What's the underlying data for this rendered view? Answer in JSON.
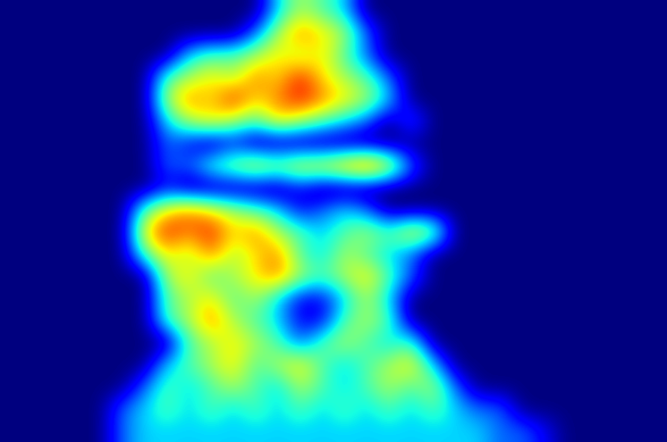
{
  "chart_data": {
    "type": "heatmap",
    "tick_labels": false,
    "value_range": [
      0,
      9
    ],
    "cells": [
      [
        0,
        0,
        0,
        0,
        0,
        0,
        0,
        0,
        0,
        0,
        0,
        0,
        3,
        5,
        4,
        3,
        0,
        0,
        0,
        0,
        0,
        0,
        0,
        0,
        0,
        0,
        0,
        0,
        0,
        0
      ],
      [
        0,
        0,
        0,
        0,
        0,
        0,
        0,
        0,
        0,
        0,
        0,
        2,
        5,
        7,
        6,
        5,
        2,
        0,
        0,
        0,
        0,
        0,
        0,
        0,
        0,
        0,
        0,
        0,
        0,
        0
      ],
      [
        0,
        0,
        0,
        0,
        0,
        0,
        0,
        0,
        3,
        4,
        4,
        5,
        6,
        5,
        6,
        4,
        2,
        0,
        0,
        0,
        0,
        0,
        0,
        0,
        0,
        0,
        0,
        0,
        0,
        0
      ],
      [
        0,
        0,
        0,
        0,
        0,
        0,
        0,
        4,
        5,
        6,
        5,
        7,
        6,
        8,
        6,
        5,
        4,
        2,
        0,
        0,
        0,
        0,
        0,
        0,
        0,
        0,
        0,
        0,
        0,
        0
      ],
      [
        0,
        0,
        0,
        0,
        0,
        0,
        0,
        5,
        7,
        6,
        8,
        6,
        7,
        8,
        7,
        6,
        5,
        3,
        0,
        0,
        0,
        0,
        0,
        0,
        0,
        0,
        0,
        0,
        0,
        0
      ],
      [
        0,
        0,
        0,
        0,
        0,
        0,
        0,
        3,
        5,
        6,
        5,
        4,
        6,
        5,
        4,
        3,
        2,
        0,
        2,
        0,
        0,
        0,
        0,
        0,
        0,
        0,
        0,
        0,
        0,
        0
      ],
      [
        0,
        0,
        0,
        0,
        0,
        0,
        0,
        2,
        1,
        0,
        1,
        0,
        0,
        0,
        0,
        0,
        0,
        0,
        0,
        0,
        0,
        0,
        0,
        0,
        0,
        0,
        0,
        0,
        0,
        0
      ],
      [
        0,
        0,
        0,
        0,
        0,
        0,
        0,
        2,
        2,
        4,
        5,
        6,
        5,
        6,
        6,
        7,
        8,
        6,
        2,
        0,
        0,
        0,
        0,
        0,
        0,
        0,
        0,
        0,
        0,
        0
      ],
      [
        0,
        0,
        0,
        0,
        0,
        0,
        0,
        1,
        0,
        0,
        0,
        0,
        0,
        1,
        0,
        0,
        0,
        0,
        0,
        0,
        0,
        0,
        0,
        0,
        0,
        0,
        0,
        0,
        0,
        0
      ],
      [
        0,
        0,
        0,
        0,
        0,
        0,
        4,
        6,
        7,
        6,
        5,
        4,
        3,
        1,
        2,
        3,
        2,
        0,
        0,
        0,
        0,
        0,
        0,
        0,
        0,
        0,
        0,
        0,
        0,
        0
      ],
      [
        0,
        0,
        0,
        0,
        0,
        0,
        6,
        8,
        7,
        8,
        6,
        7,
        5,
        4,
        3,
        4,
        5,
        4,
        6,
        5,
        0,
        0,
        0,
        0,
        0,
        0,
        0,
        0,
        0,
        0
      ],
      [
        0,
        0,
        0,
        0,
        0,
        0,
        4,
        6,
        5,
        7,
        5,
        6,
        7,
        4,
        3,
        5,
        4,
        3,
        2,
        0,
        0,
        0,
        0,
        0,
        0,
        0,
        0,
        0,
        0,
        0
      ],
      [
        0,
        0,
        0,
        0,
        0,
        0,
        0,
        5,
        6,
        4,
        5,
        6,
        7,
        5,
        4,
        5,
        6,
        4,
        2,
        0,
        0,
        0,
        0,
        0,
        0,
        0,
        0,
        0,
        0,
        0
      ],
      [
        0,
        0,
        0,
        0,
        0,
        0,
        0,
        4,
        5,
        6,
        4,
        5,
        3,
        1,
        1,
        3,
        5,
        3,
        0,
        0,
        0,
        0,
        0,
        0,
        0,
        0,
        0,
        0,
        0,
        0
      ],
      [
        0,
        0,
        0,
        0,
        0,
        0,
        0,
        4,
        5,
        7,
        5,
        4,
        3,
        1,
        1,
        4,
        5,
        4,
        0,
        0,
        0,
        0,
        0,
        0,
        0,
        0,
        0,
        0,
        0,
        0
      ],
      [
        0,
        0,
        0,
        0,
        0,
        0,
        0,
        0,
        4,
        5,
        6,
        5,
        4,
        2,
        4,
        5,
        4,
        3,
        4,
        0,
        0,
        0,
        0,
        0,
        0,
        0,
        0,
        0,
        0,
        0
      ],
      [
        0,
        0,
        0,
        0,
        0,
        0,
        0,
        3,
        4,
        5,
        6,
        4,
        5,
        6,
        4,
        3,
        4,
        5,
        6,
        3,
        0,
        0,
        0,
        0,
        0,
        0,
        0,
        0,
        0,
        0
      ],
      [
        0,
        0,
        0,
        0,
        0,
        0,
        2,
        4,
        3,
        4,
        5,
        4,
        3,
        5,
        4,
        3,
        4,
        5,
        4,
        5,
        2,
        0,
        0,
        0,
        0,
        0,
        0,
        0,
        0,
        0
      ],
      [
        0,
        0,
        0,
        0,
        0,
        2,
        3,
        4,
        3,
        4,
        3,
        4,
        3,
        4,
        3,
        4,
        3,
        4,
        3,
        4,
        3,
        2,
        2,
        0,
        0,
        0,
        0,
        0,
        0,
        0
      ],
      [
        0,
        0,
        0,
        0,
        0,
        2,
        3,
        3,
        3,
        3,
        3,
        3,
        3,
        3,
        3,
        3,
        3,
        3,
        3,
        3,
        3,
        3,
        2,
        2,
        1,
        0,
        0,
        0,
        0,
        0
      ]
    ]
  }
}
